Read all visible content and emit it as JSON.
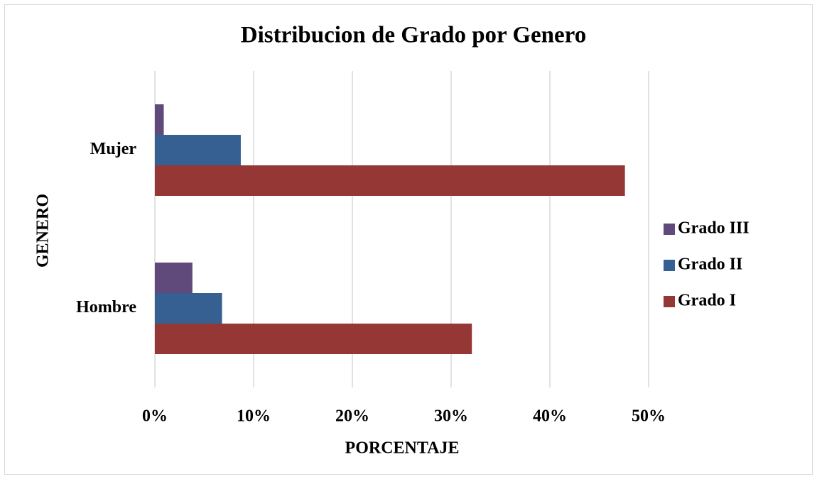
{
  "chart_data": {
    "type": "barh",
    "title": "Distribucion de Grado por Genero",
    "xlabel": "PORCENTAJE",
    "ylabel": "GENERO",
    "categories": [
      "Mujer",
      "Hombre"
    ],
    "series": [
      {
        "name": "Grado I",
        "color": "#953735",
        "values": [
          47.6,
          32.1
        ]
      },
      {
        "name": "Grado II",
        "color": "#376092",
        "values": [
          8.7,
          6.8
        ]
      },
      {
        "name": "Grado III",
        "color": "#604a7b",
        "values": [
          0.9,
          3.8
        ]
      }
    ],
    "xlim": [
      0,
      50
    ],
    "xticks": [
      {
        "value": 0,
        "label": "0%"
      },
      {
        "value": 10,
        "label": "10%"
      },
      {
        "value": 20,
        "label": "20%"
      },
      {
        "value": 30,
        "label": "30%"
      },
      {
        "value": 40,
        "label": "40%"
      },
      {
        "value": 50,
        "label": "50%"
      }
    ],
    "grid": true,
    "legend": "right"
  }
}
